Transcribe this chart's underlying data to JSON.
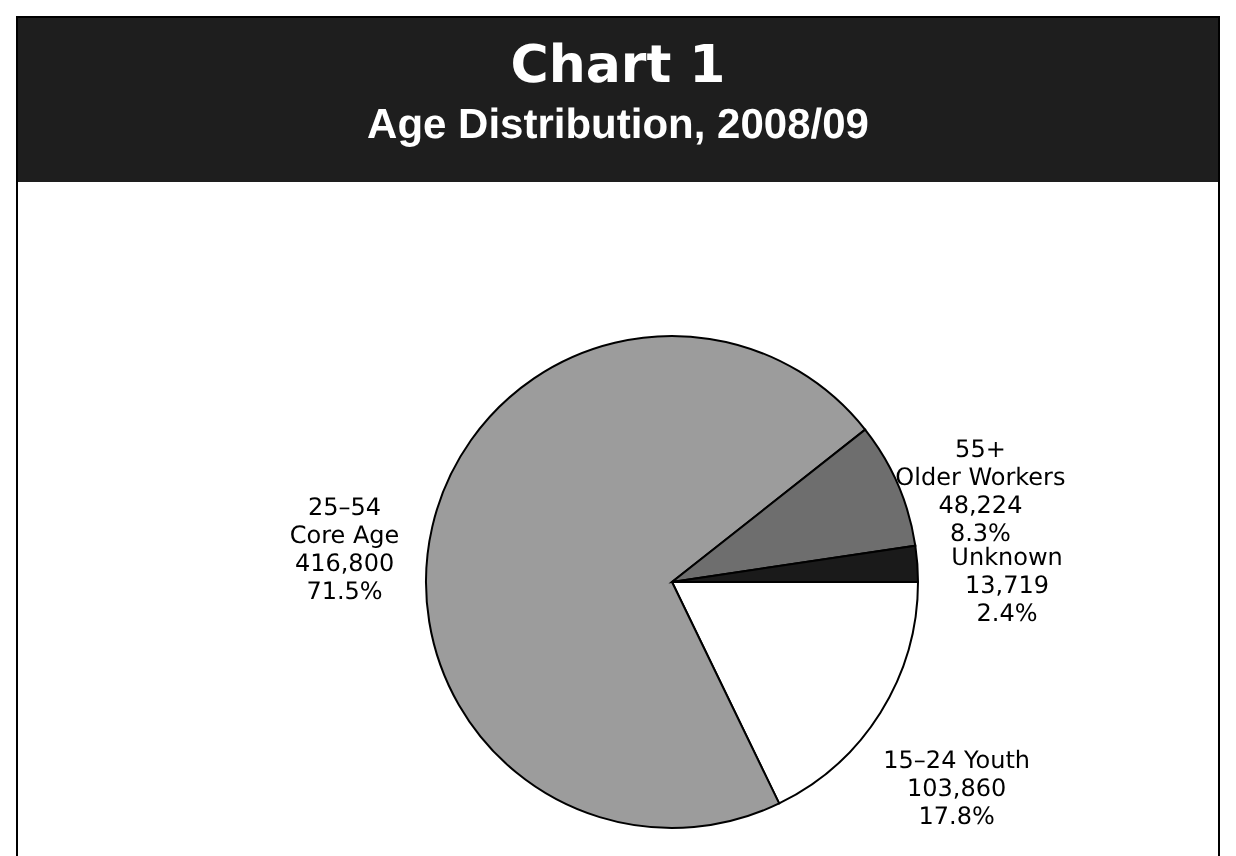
{
  "chart_data": {
    "type": "pie",
    "title": "Chart 1",
    "subtitle": "Age Distribution, 2008/09",
    "categories": [
      "15–24 Youth",
      "25–54\nCore Age",
      "55+\nOlder Workers",
      "Unknown"
    ],
    "values": [
      103860,
      416800,
      48224,
      13719
    ],
    "colors": [
      "#ffffff",
      "#9c9c9c",
      "#6e6e6e",
      "#1a1a1a"
    ],
    "value_labels": [
      "103,860\n17.8%",
      "416,800\n71.5%",
      "48,224\n8.3%",
      "13,719\n2.4%"
    ]
  }
}
